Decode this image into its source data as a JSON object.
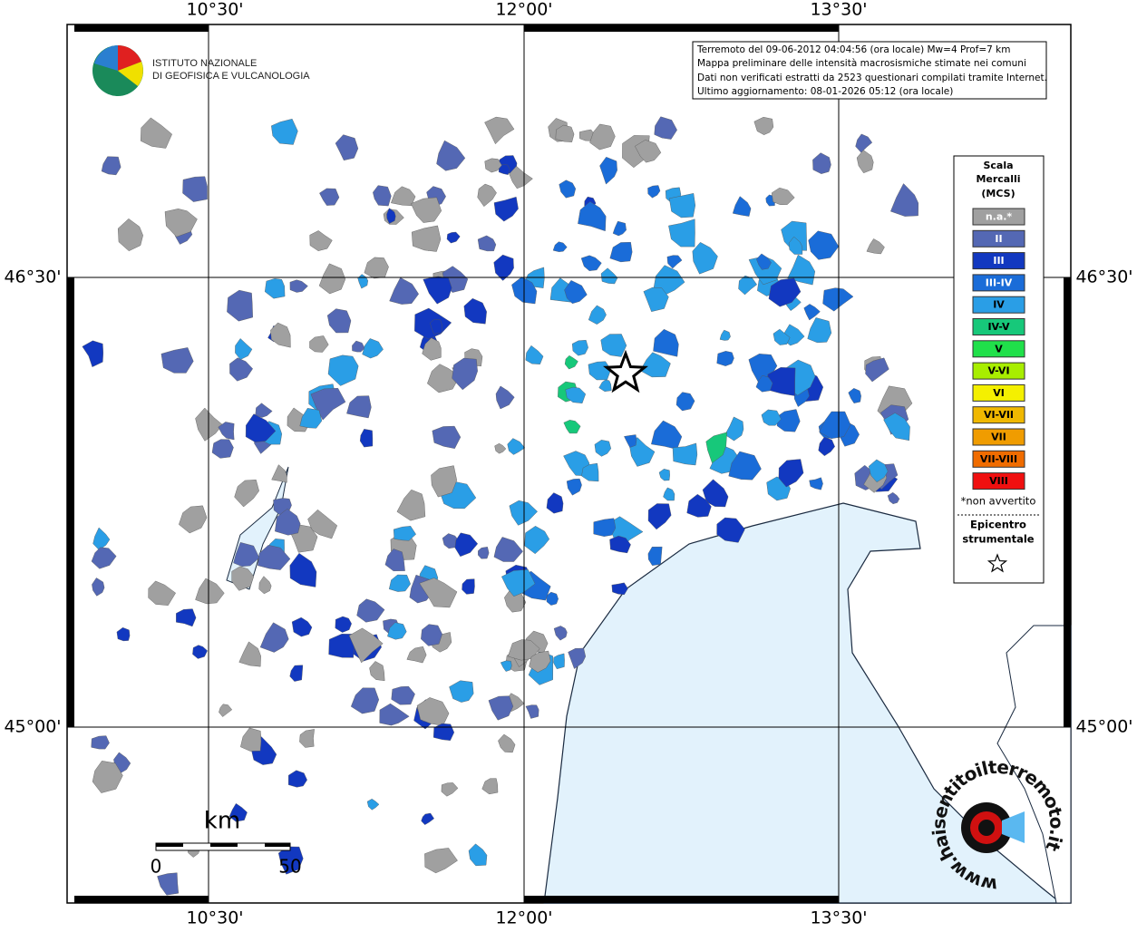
{
  "map": {
    "header": {
      "institute": [
        "ISTITUTO NAZIONALE",
        "DI GEOFISICA E VULCANOLOGIA"
      ]
    },
    "info": [
      "Terremoto del 09-06-2012 04:04:56 (ora locale) Mw=4 Prof=7 km",
      "Mappa preliminare delle intensità macrosismiche stimate nei comuni",
      "Dati non verificati estratti da 2523 questionari compilati tramite Internet.",
      "Ultimo aggiornamento: 08-01-2026 05:12 (ora locale)"
    ],
    "grid": {
      "lon_labels": [
        "10°30'",
        "12°00'",
        "13°30'"
      ],
      "lat_labels": [
        "46°30'",
        "45°00'"
      ]
    },
    "legend": {
      "title": [
        "Scala",
        "Mercalli",
        "(MCS)"
      ],
      "items": [
        {
          "label": "n.a.*",
          "color": "#a0a0a0"
        },
        {
          "label": "II",
          "color": "#5468b4"
        },
        {
          "label": "III",
          "color": "#1238c0"
        },
        {
          "label": "III-IV",
          "color": "#1a6cd8"
        },
        {
          "label": "IV",
          "color": "#2a9ee6"
        },
        {
          "label": "IV-V",
          "color": "#17c87a"
        },
        {
          "label": "V",
          "color": "#20e04a"
        },
        {
          "label": "V-VI",
          "color": "#a8ee00"
        },
        {
          "label": "VI",
          "color": "#f4f000"
        },
        {
          "label": "VI-VII",
          "color": "#f0b800"
        },
        {
          "label": "VII",
          "color": "#f09c00"
        },
        {
          "label": "VII-VIII",
          "color": "#f06c00"
        },
        {
          "label": "VIII",
          "color": "#f01010"
        }
      ],
      "note": "*non avvertito",
      "epicenter": [
        "Epicentro",
        "strumentale"
      ]
    },
    "scale_bar": {
      "unit": "km",
      "labels": [
        "0",
        "50"
      ]
    },
    "watermark": "www.haisentitoilterremoto.it"
  }
}
